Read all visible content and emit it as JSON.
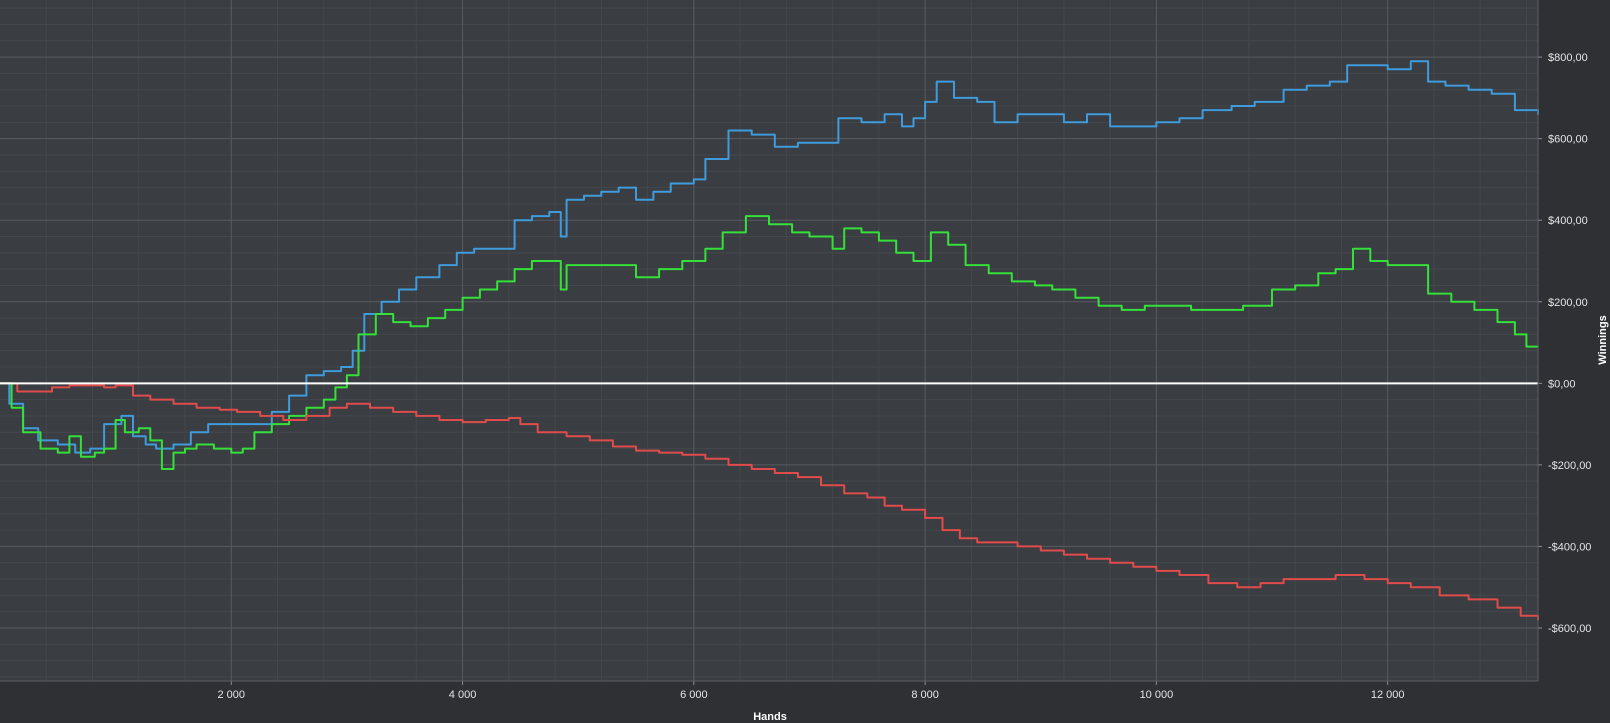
{
  "chart_data": {
    "type": "line",
    "xlabel": "Hands",
    "ylabel": "Winnings",
    "xlim": [
      0,
      13300
    ],
    "ylim": [
      -730,
      940
    ],
    "grid": true,
    "x_ticks": [
      2000,
      4000,
      6000,
      8000,
      10000,
      12000
    ],
    "x_tick_labels": [
      "2 000",
      "4 000",
      "6 000",
      "8 000",
      "10 000",
      "12 000"
    ],
    "y_ticks": [
      800,
      600,
      400,
      200,
      0,
      -200,
      -400,
      -600
    ],
    "y_tick_labels": [
      "$800,00",
      "$600,00",
      "$400,00",
      "$200,00",
      "$0,00",
      "-$200,00",
      "-$400,00",
      "-$600,00"
    ],
    "zero_line": 0,
    "series": [
      {
        "color": "#3f9bdb",
        "points": [
          [
            0,
            0
          ],
          [
            80,
            -50
          ],
          [
            200,
            -110
          ],
          [
            330,
            -140
          ],
          [
            500,
            -150
          ],
          [
            650,
            -170
          ],
          [
            780,
            -160
          ],
          [
            900,
            -100
          ],
          [
            1050,
            -80
          ],
          [
            1150,
            -130
          ],
          [
            1260,
            -150
          ],
          [
            1350,
            -160
          ],
          [
            1500,
            -150
          ],
          [
            1650,
            -120
          ],
          [
            1800,
            -100
          ],
          [
            2000,
            -100
          ],
          [
            2200,
            -100
          ],
          [
            2350,
            -70
          ],
          [
            2500,
            -30
          ],
          [
            2650,
            20
          ],
          [
            2800,
            30
          ],
          [
            2950,
            40
          ],
          [
            3050,
            80
          ],
          [
            3150,
            170
          ],
          [
            3300,
            200
          ],
          [
            3450,
            230
          ],
          [
            3600,
            260
          ],
          [
            3800,
            290
          ],
          [
            3950,
            320
          ],
          [
            4100,
            330
          ],
          [
            4300,
            330
          ],
          [
            4450,
            400
          ],
          [
            4600,
            410
          ],
          [
            4750,
            420
          ],
          [
            4850,
            360
          ],
          [
            4900,
            450
          ],
          [
            5050,
            460
          ],
          [
            5200,
            470
          ],
          [
            5350,
            480
          ],
          [
            5500,
            450
          ],
          [
            5650,
            470
          ],
          [
            5800,
            490
          ],
          [
            6000,
            500
          ],
          [
            6100,
            550
          ],
          [
            6300,
            620
          ],
          [
            6500,
            610
          ],
          [
            6700,
            580
          ],
          [
            6900,
            590
          ],
          [
            7050,
            590
          ],
          [
            7250,
            650
          ],
          [
            7450,
            640
          ],
          [
            7650,
            660
          ],
          [
            7800,
            630
          ],
          [
            7900,
            650
          ],
          [
            8000,
            690
          ],
          [
            8100,
            740
          ],
          [
            8250,
            700
          ],
          [
            8450,
            690
          ],
          [
            8600,
            640
          ],
          [
            8800,
            660
          ],
          [
            9000,
            660
          ],
          [
            9200,
            640
          ],
          [
            9400,
            660
          ],
          [
            9600,
            630
          ],
          [
            9800,
            630
          ],
          [
            10000,
            640
          ],
          [
            10200,
            650
          ],
          [
            10400,
            670
          ],
          [
            10650,
            680
          ],
          [
            10850,
            690
          ],
          [
            11100,
            720
          ],
          [
            11300,
            730
          ],
          [
            11500,
            740
          ],
          [
            11650,
            780
          ],
          [
            11800,
            780
          ],
          [
            12000,
            770
          ],
          [
            12200,
            790
          ],
          [
            12350,
            740
          ],
          [
            12500,
            730
          ],
          [
            12700,
            720
          ],
          [
            12900,
            710
          ],
          [
            13100,
            670
          ],
          [
            13300,
            660
          ]
        ]
      },
      {
        "color": "#35e03a",
        "points": [
          [
            0,
            0
          ],
          [
            100,
            -60
          ],
          [
            200,
            -120
          ],
          [
            350,
            -160
          ],
          [
            500,
            -170
          ],
          [
            600,
            -130
          ],
          [
            700,
            -180
          ],
          [
            820,
            -170
          ],
          [
            900,
            -160
          ],
          [
            1000,
            -90
          ],
          [
            1080,
            -120
          ],
          [
            1200,
            -110
          ],
          [
            1300,
            -140
          ],
          [
            1400,
            -210
          ],
          [
            1500,
            -170
          ],
          [
            1600,
            -160
          ],
          [
            1700,
            -150
          ],
          [
            1850,
            -160
          ],
          [
            2000,
            -170
          ],
          [
            2100,
            -160
          ],
          [
            2200,
            -120
          ],
          [
            2350,
            -100
          ],
          [
            2500,
            -80
          ],
          [
            2650,
            -60
          ],
          [
            2800,
            -40
          ],
          [
            2900,
            -10
          ],
          [
            3000,
            20
          ],
          [
            3100,
            120
          ],
          [
            3250,
            170
          ],
          [
            3400,
            150
          ],
          [
            3550,
            140
          ],
          [
            3700,
            160
          ],
          [
            3850,
            180
          ],
          [
            4000,
            210
          ],
          [
            4150,
            230
          ],
          [
            4300,
            250
          ],
          [
            4450,
            280
          ],
          [
            4600,
            300
          ],
          [
            4800,
            300
          ],
          [
            4850,
            230
          ],
          [
            4900,
            290
          ],
          [
            5100,
            290
          ],
          [
            5300,
            290
          ],
          [
            5500,
            260
          ],
          [
            5700,
            280
          ],
          [
            5900,
            300
          ],
          [
            6100,
            330
          ],
          [
            6250,
            370
          ],
          [
            6450,
            410
          ],
          [
            6650,
            390
          ],
          [
            6850,
            370
          ],
          [
            7000,
            360
          ],
          [
            7200,
            330
          ],
          [
            7300,
            380
          ],
          [
            7450,
            370
          ],
          [
            7600,
            350
          ],
          [
            7750,
            320
          ],
          [
            7900,
            300
          ],
          [
            8050,
            370
          ],
          [
            8200,
            340
          ],
          [
            8350,
            290
          ],
          [
            8550,
            270
          ],
          [
            8750,
            250
          ],
          [
            8950,
            240
          ],
          [
            9100,
            230
          ],
          [
            9300,
            210
          ],
          [
            9500,
            190
          ],
          [
            9700,
            180
          ],
          [
            9900,
            190
          ],
          [
            10100,
            190
          ],
          [
            10300,
            180
          ],
          [
            10500,
            180
          ],
          [
            10750,
            190
          ],
          [
            11000,
            230
          ],
          [
            11200,
            240
          ],
          [
            11400,
            270
          ],
          [
            11550,
            280
          ],
          [
            11700,
            330
          ],
          [
            11850,
            300
          ],
          [
            12000,
            290
          ],
          [
            12200,
            290
          ],
          [
            12350,
            220
          ],
          [
            12550,
            200
          ],
          [
            12750,
            180
          ],
          [
            12950,
            150
          ],
          [
            13100,
            120
          ],
          [
            13200,
            90
          ],
          [
            13300,
            90
          ]
        ]
      },
      {
        "color": "#e04c4c",
        "points": [
          [
            0,
            0
          ],
          [
            150,
            -20
          ],
          [
            300,
            -20
          ],
          [
            450,
            -10
          ],
          [
            600,
            -5
          ],
          [
            750,
            -5
          ],
          [
            900,
            -10
          ],
          [
            1000,
            -5
          ],
          [
            1150,
            -30
          ],
          [
            1300,
            -40
          ],
          [
            1500,
            -50
          ],
          [
            1700,
            -60
          ],
          [
            1900,
            -65
          ],
          [
            2050,
            -70
          ],
          [
            2250,
            -80
          ],
          [
            2450,
            -90
          ],
          [
            2650,
            -80
          ],
          [
            2850,
            -60
          ],
          [
            3000,
            -50
          ],
          [
            3200,
            -60
          ],
          [
            3400,
            -70
          ],
          [
            3600,
            -80
          ],
          [
            3800,
            -90
          ],
          [
            4000,
            -95
          ],
          [
            4200,
            -90
          ],
          [
            4400,
            -85
          ],
          [
            4500,
            -100
          ],
          [
            4650,
            -120
          ],
          [
            4900,
            -130
          ],
          [
            5100,
            -140
          ],
          [
            5300,
            -155
          ],
          [
            5500,
            -165
          ],
          [
            5700,
            -170
          ],
          [
            5900,
            -175
          ],
          [
            6100,
            -185
          ],
          [
            6300,
            -200
          ],
          [
            6500,
            -210
          ],
          [
            6700,
            -220
          ],
          [
            6900,
            -230
          ],
          [
            7100,
            -250
          ],
          [
            7300,
            -270
          ],
          [
            7500,
            -280
          ],
          [
            7650,
            -300
          ],
          [
            7800,
            -310
          ],
          [
            8000,
            -330
          ],
          [
            8150,
            -360
          ],
          [
            8300,
            -380
          ],
          [
            8450,
            -390
          ],
          [
            8600,
            -390
          ],
          [
            8800,
            -400
          ],
          [
            9000,
            -410
          ],
          [
            9200,
            -420
          ],
          [
            9400,
            -430
          ],
          [
            9600,
            -440
          ],
          [
            9800,
            -450
          ],
          [
            10000,
            -460
          ],
          [
            10200,
            -470
          ],
          [
            10450,
            -490
          ],
          [
            10700,
            -500
          ],
          [
            10900,
            -490
          ],
          [
            11100,
            -480
          ],
          [
            11350,
            -480
          ],
          [
            11550,
            -470
          ],
          [
            11800,
            -480
          ],
          [
            12000,
            -490
          ],
          [
            12200,
            -500
          ],
          [
            12450,
            -520
          ],
          [
            12700,
            -530
          ],
          [
            12950,
            -550
          ],
          [
            13150,
            -570
          ],
          [
            13300,
            -580
          ]
        ]
      }
    ]
  }
}
